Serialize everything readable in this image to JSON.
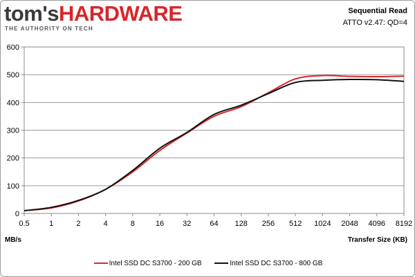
{
  "header": {
    "logo_left": "tom's",
    "logo_right": "HARDWARE",
    "tagline": "THE AUTHORITY ON TECH",
    "logo_color_dark": "#3a3a3a",
    "logo_color_red": "#d7262b"
  },
  "chart_data": {
    "type": "line",
    "title": "Sequential Read",
    "subtitle": "ATTO v2.47: QD=4",
    "ylabel": "MB/s",
    "xlabel": "Transfer Size (KB)",
    "categories": [
      "0.5",
      "1",
      "2",
      "4",
      "8",
      "16",
      "32",
      "64",
      "128",
      "256",
      "512",
      "1024",
      "2048",
      "4096",
      "8192"
    ],
    "ylim": [
      0,
      600
    ],
    "yticks": [
      0,
      100,
      200,
      300,
      400,
      500,
      600
    ],
    "grid": "horizontal",
    "legend_position": "bottom",
    "series": [
      {
        "name": "Intel SSD DC S3700 - 200 GB",
        "color": "#d7262b",
        "values": [
          10,
          20,
          45,
          87,
          150,
          227,
          290,
          350,
          385,
          435,
          485,
          497,
          494,
          493,
          495
        ]
      },
      {
        "name": "Intel SSD DC S3700 - 800 GB",
        "color": "#111111",
        "values": [
          10,
          22,
          47,
          87,
          155,
          235,
          292,
          357,
          390,
          432,
          472,
          480,
          483,
          482,
          476
        ]
      }
    ]
  }
}
